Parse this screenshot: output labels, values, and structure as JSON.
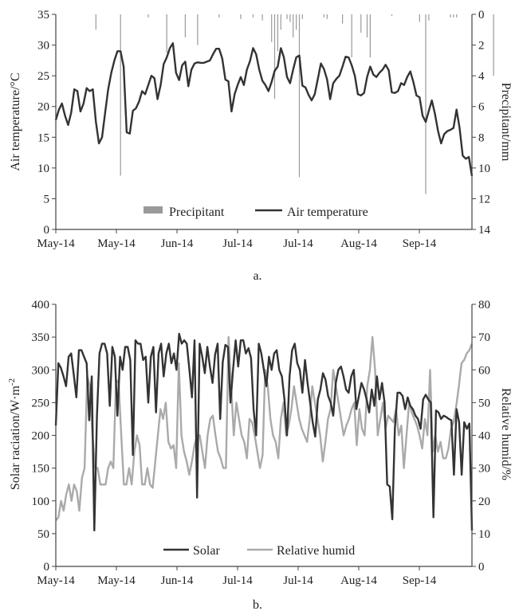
{
  "chart_data": [
    {
      "type": "line",
      "panel_label": "a.",
      "title": "",
      "xlabel": "",
      "x_tick_labels": [
        "May-14",
        "May-14",
        "Jun-14",
        "Jul-14",
        "Jul-14",
        "Aug-14",
        "Sep-14"
      ],
      "ylabel": "Air temperature/°C",
      "ylim": [
        0,
        35
      ],
      "y_ticks": [
        "0",
        "5",
        "10",
        "15",
        "20",
        "25",
        "30",
        "35"
      ],
      "y2label": "Precipitant/mm",
      "y2lim": [
        0,
        14
      ],
      "y2_inverted": true,
      "y2_ticks": [
        "0",
        "2",
        "4",
        "6",
        "8",
        "10",
        "12",
        "14"
      ],
      "grid": false,
      "legend_position": "bottom-center",
      "series": [
        {
          "name": "Air temperature",
          "axis": "left",
          "kind": "line",
          "color": "#333333",
          "values": [
            17.8,
            19.5,
            20.5,
            18.5,
            17.0,
            19.0,
            22.8,
            22.5,
            19.2,
            20.5,
            23.0,
            22.5,
            22.8,
            17.5,
            14.0,
            15.0,
            19.0,
            22.8,
            25.5,
            27.5,
            29.0,
            29.0,
            26.5,
            15.8,
            15.6,
            19.3,
            19.7,
            20.8,
            22.5,
            22.0,
            23.5,
            25.0,
            24.6,
            21.2,
            23.5,
            26.9,
            28.0,
            29.5,
            30.3,
            25.5,
            24.3,
            26.7,
            27.3,
            23.3,
            26.0,
            27.0,
            27.2,
            27.1,
            27.1,
            27.3,
            27.5,
            28.5,
            29.4,
            29.4,
            27.8,
            24.4,
            24.1,
            19.2,
            22.0,
            23.5,
            24.8,
            23.5,
            26.0,
            27.4,
            29.5,
            28.5,
            26.0,
            24.2,
            23.5,
            22.5,
            24.0,
            25.8,
            26.5,
            29.5,
            28.0,
            24.8,
            23.8,
            26.0,
            28.0,
            28.3,
            23.4,
            23.1,
            21.9,
            21.0,
            22.0,
            24.5,
            27.0,
            26.1,
            24.4,
            21.2,
            23.8,
            24.5,
            25.0,
            26.5,
            28.1,
            28.0,
            26.7,
            25.0,
            22.0,
            21.8,
            22.2,
            24.8,
            26.5,
            25.2,
            24.8,
            25.5,
            26.0,
            26.8,
            25.9,
            22.3,
            22.2,
            22.5,
            23.8,
            23.5,
            24.8,
            25.7,
            24.0,
            21.8,
            21.5,
            18.5,
            17.5,
            19.3,
            21.0,
            18.8,
            16.0,
            14.0,
            15.5,
            16.0,
            16.2,
            16.5,
            19.5,
            16.5,
            12.0,
            11.5,
            11.8,
            8.7
          ]
        },
        {
          "name": "Precipitant",
          "axis": "right",
          "kind": "bar",
          "color": "#9a9a9a",
          "bars": [
            [
              13,
              1.0
            ],
            [
              21,
              10.5
            ],
            [
              30,
              0.2
            ],
            [
              36,
              2.5
            ],
            [
              42,
              1.5
            ],
            [
              46,
              2.0
            ],
            [
              53,
              0.2
            ],
            [
              60,
              0.3
            ],
            [
              64,
              0.2
            ],
            [
              67,
              0.4
            ],
            [
              70,
              1.8
            ],
            [
              71,
              5.5
            ],
            [
              72,
              2.4
            ],
            [
              73,
              1.0
            ],
            [
              75,
              0.3
            ],
            [
              76,
              0.5
            ],
            [
              77,
              1.5
            ],
            [
              78,
              1.0
            ],
            [
              79,
              10.6
            ],
            [
              80,
              0.3
            ],
            [
              87,
              0.2
            ],
            [
              88,
              0.3
            ],
            [
              93,
              0.6
            ],
            [
              96,
              2.8
            ],
            [
              99,
              1.2
            ],
            [
              101,
              1.5
            ],
            [
              102,
              2.8
            ],
            [
              109,
              0.1
            ],
            [
              118,
              0.5
            ],
            [
              120,
              11.7
            ],
            [
              121,
              0.4
            ],
            [
              128,
              0.2
            ],
            [
              129,
              0.2
            ],
            [
              130,
              0.2
            ],
            [
              142,
              4.0
            ],
            [
              158,
              0.5
            ],
            [
              160,
              3.0
            ]
          ]
        }
      ]
    },
    {
      "type": "line",
      "panel_label": "b.",
      "title": "",
      "xlabel": "",
      "x_tick_labels": [
        "May-14",
        "May-14",
        "Jun-14",
        "Jul-14",
        "Jul-14",
        "Aug-14",
        "Sep-14"
      ],
      "ylabel": "Solar raciation/W·m",
      "ylabel_superscript": "-2",
      "ylim": [
        0,
        400
      ],
      "y_ticks": [
        "0",
        "50",
        "100",
        "150",
        "200",
        "250",
        "300",
        "350",
        "400"
      ],
      "y2label": "Relative humid/%",
      "y2lim": [
        0,
        80
      ],
      "y2_ticks": [
        "0",
        "10",
        "20",
        "30",
        "40",
        "50",
        "60",
        "70",
        "80"
      ],
      "grid": false,
      "legend_position": "bottom-center",
      "series": [
        {
          "name": "Solar",
          "axis": "left",
          "color": "#333333",
          "values": [
            215,
            310,
            303,
            290,
            275,
            320,
            325,
            292,
            258,
            330,
            330,
            320,
            310,
            223,
            290,
            55,
            230,
            325,
            340,
            340,
            325,
            245,
            335,
            320,
            230,
            320,
            300,
            335,
            335,
            315,
            170,
            345,
            340,
            340,
            315,
            320,
            250,
            320,
            335,
            235,
            325,
            340,
            290,
            325,
            340,
            310,
            325,
            300,
            355,
            340,
            345,
            340,
            300,
            258,
            345,
            105,
            340,
            320,
            295,
            335,
            305,
            280,
            323,
            340,
            225,
            312,
            338,
            335,
            250,
            300,
            345,
            305,
            345,
            345,
            325,
            333,
            318,
            240,
            200,
            340,
            325,
            300,
            275,
            320,
            300,
            325,
            330,
            300,
            290,
            255,
            200,
            290,
            330,
            340,
            310,
            300,
            265,
            315,
            280,
            250,
            220,
            198,
            255,
            270,
            295,
            285,
            260,
            250,
            230,
            280,
            300,
            305,
            290,
            270,
            265,
            290,
            300,
            240,
            260,
            280,
            270,
            255,
            235,
            270,
            245,
            290,
            255,
            280,
            250,
            125,
            122,
            72,
            210,
            265,
            265,
            260,
            240,
            258,
            245,
            240,
            230,
            225,
            210,
            255,
            262,
            255,
            250,
            75,
            238,
            235,
            225,
            230,
            228,
            225,
            223,
            140,
            240,
            220,
            140,
            220,
            210,
            218,
            55
          ]
        },
        {
          "name": "Relative humid",
          "axis": "right",
          "color": "#aaaaaa",
          "values": [
            14,
            15,
            20,
            17,
            22,
            25,
            20,
            25,
            23,
            17,
            27,
            30,
            58,
            55,
            40,
            30,
            30,
            25,
            25,
            25,
            30,
            32,
            30,
            57,
            56,
            40,
            25,
            25,
            30,
            25,
            35,
            40,
            37,
            25,
            25,
            30,
            25,
            24,
            32,
            40,
            48,
            45,
            50,
            38,
            36,
            37,
            30,
            62,
            40,
            35,
            32,
            28,
            32,
            37,
            40,
            40,
            35,
            30,
            40,
            45,
            46,
            40,
            35,
            33,
            30,
            30,
            70,
            55,
            40,
            50,
            45,
            40,
            38,
            33,
            45,
            44,
            40,
            35,
            30,
            34,
            60,
            55,
            45,
            40,
            38,
            33,
            45,
            50,
            40,
            43,
            48,
            55,
            50,
            45,
            42,
            40,
            38,
            45,
            55,
            50,
            45,
            40,
            32,
            38,
            45,
            48,
            60,
            55,
            50,
            45,
            40,
            43,
            45,
            48,
            50,
            37,
            48,
            42,
            40,
            55,
            60,
            70,
            60,
            40,
            45,
            50,
            42,
            46,
            45,
            44,
            48,
            40,
            43,
            30,
            40,
            50,
            47,
            45,
            43,
            40,
            36,
            45,
            40,
            60,
            35,
            40,
            35,
            38,
            33,
            33,
            36,
            42,
            44,
            49,
            55,
            62,
            63,
            65,
            66,
            68
          ]
        }
      ]
    }
  ]
}
